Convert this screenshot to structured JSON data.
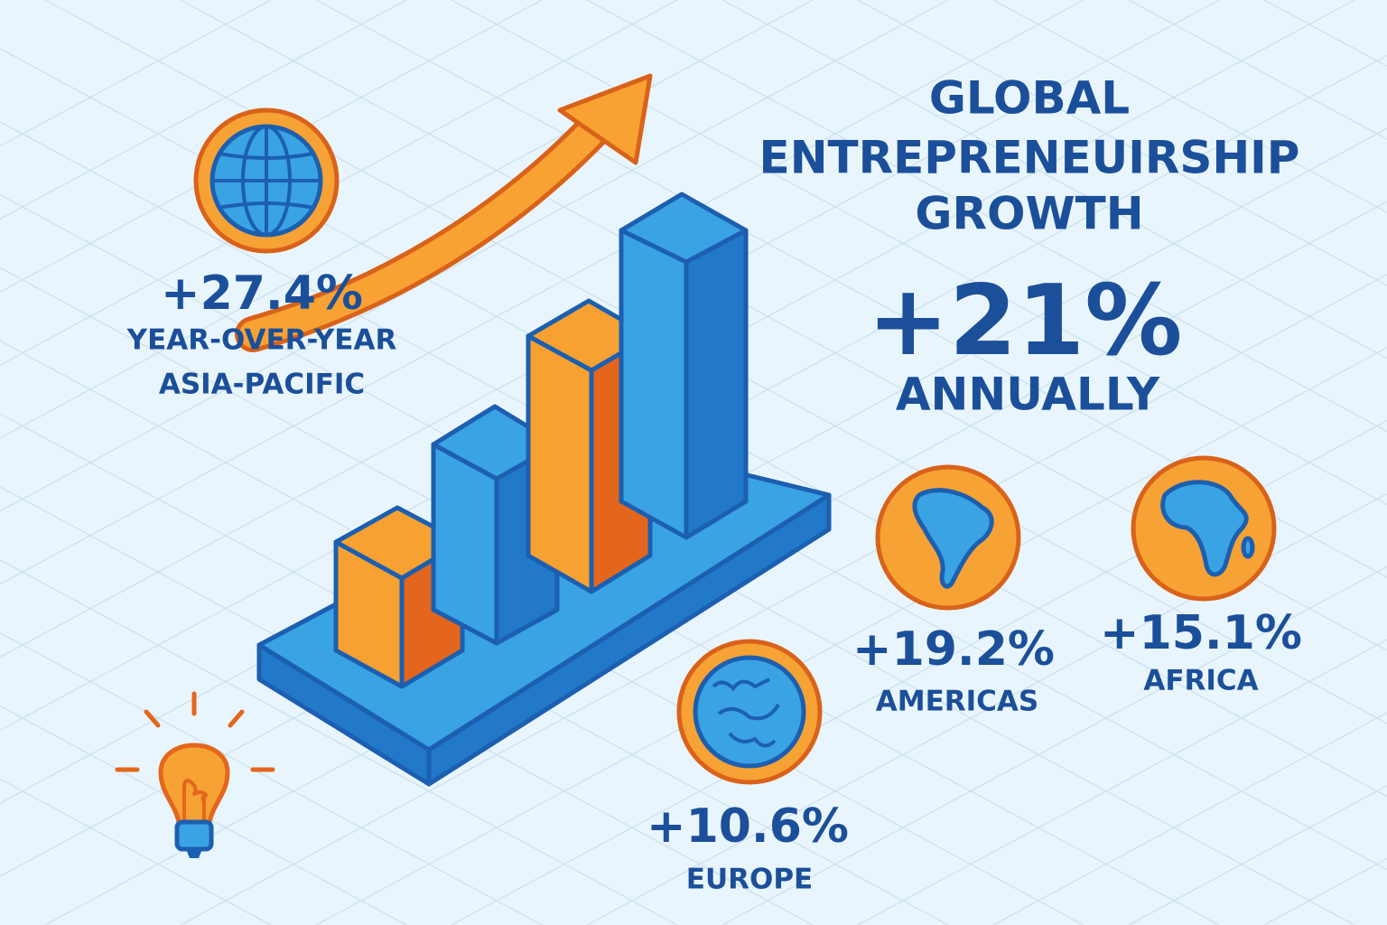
{
  "header": {
    "title_lines": [
      "GLOBAL",
      "ENTREPRENEUIRSHIP",
      "GROWTH"
    ],
    "headline": "+21%",
    "headline_caption": "ANNUALLY"
  },
  "stats": [
    {
      "value": "+27.4%",
      "captions": [
        "YEAR-OVER-YEAR",
        "ASIA-PACIFIC"
      ]
    },
    {
      "value": "+19.2%",
      "captions": [
        "AMERICAS"
      ]
    },
    {
      "value": "+15.1%",
      "captions": [
        "AFRICA"
      ]
    },
    {
      "value": "+10.6%",
      "captions": [
        "EUROPE"
      ]
    }
  ]
}
